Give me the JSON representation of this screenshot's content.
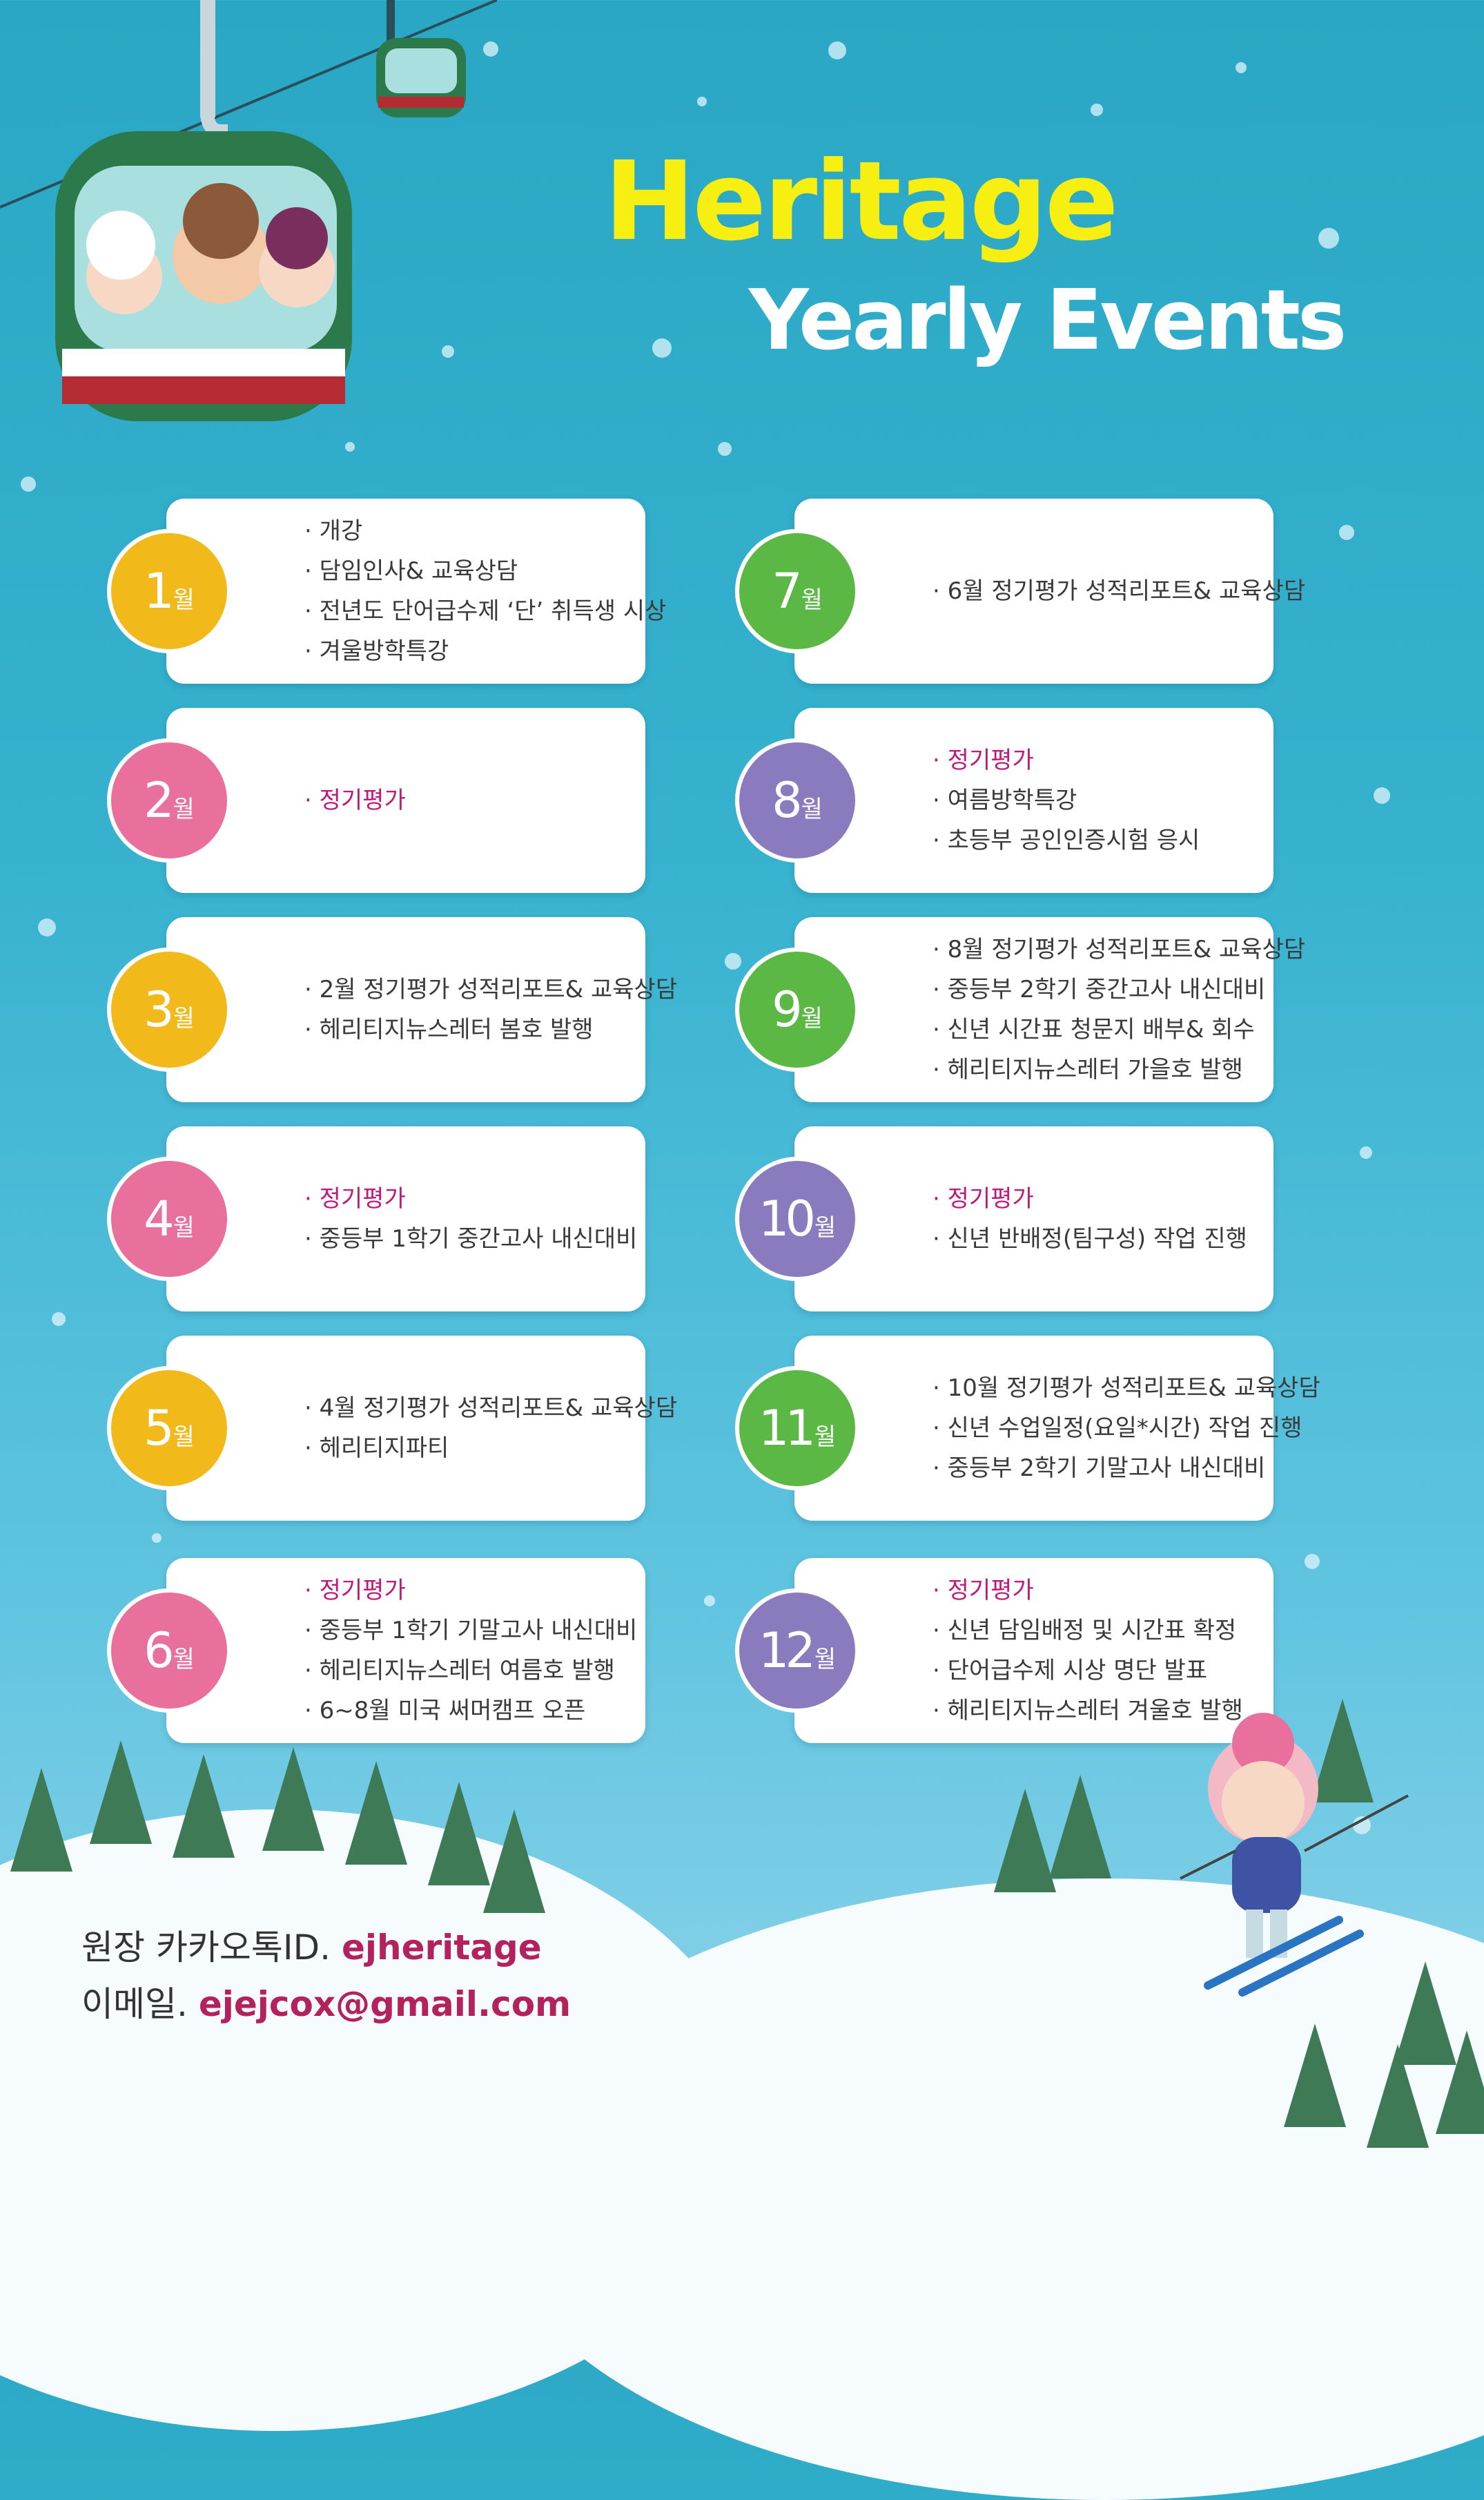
{
  "title": {
    "line1": "Heritage",
    "line2": "Yearly Events"
  },
  "unit": "월",
  "left_column": [
    {
      "month": "1",
      "color": "yellow",
      "items": [
        {
          "text": "· 개강",
          "pink": false
        },
        {
          "text": "· 담임인사& 교육상담",
          "pink": false
        },
        {
          "text": "· 전년도 단어급수제 ‘단’ 취득생 시상",
          "pink": false
        },
        {
          "text": "· 겨울방학특강",
          "pink": false
        }
      ]
    },
    {
      "month": "2",
      "color": "pink",
      "items": [
        {
          "text": "· 정기평가",
          "pink": true
        }
      ]
    },
    {
      "month": "3",
      "color": "yellow",
      "items": [
        {
          "text": "· 2월 정기평가 성적리포트& 교육상담",
          "pink": false
        },
        {
          "text": "· 헤리티지뉴스레터 봄호 발행",
          "pink": false
        }
      ]
    },
    {
      "month": "4",
      "color": "pink",
      "items": [
        {
          "text": "· 정기평가",
          "pink": true
        },
        {
          "text": "· 중등부 1학기 중간고사 내신대비",
          "pink": false
        }
      ]
    },
    {
      "month": "5",
      "color": "yellow",
      "items": [
        {
          "text": "· 4월 정기평가 성적리포트& 교육상담",
          "pink": false
        },
        {
          "text": "· 헤리티지파티",
          "pink": false
        }
      ]
    },
    {
      "month": "6",
      "color": "pink",
      "items": [
        {
          "text": "· 정기평가",
          "pink": true
        },
        {
          "text": "· 중등부 1학기 기말고사 내신대비",
          "pink": false
        },
        {
          "text": "· 헤리티지뉴스레터 여름호 발행",
          "pink": false
        },
        {
          "text": "· 6~8월 미국 써머캠프 오픈",
          "pink": false
        }
      ]
    }
  ],
  "right_column": [
    {
      "month": "7",
      "color": "green",
      "items": [
        {
          "text": "· 6월 정기평가 성적리포트& 교육상담",
          "pink": false
        }
      ]
    },
    {
      "month": "8",
      "color": "purple",
      "items": [
        {
          "text": "· 정기평가",
          "pink": true
        },
        {
          "text": "· 여름방학특강",
          "pink": false
        },
        {
          "text": "· 초등부 공인인증시험 응시",
          "pink": false
        }
      ]
    },
    {
      "month": "9",
      "color": "green",
      "items": [
        {
          "text": "· 8월 정기평가 성적리포트& 교육상담",
          "pink": false
        },
        {
          "text": "· 중등부 2학기 중간고사 내신대비",
          "pink": false
        },
        {
          "text": "· 신년 시간표 청문지 배부& 회수",
          "pink": false
        },
        {
          "text": "· 헤리티지뉴스레터 가을호 발행",
          "pink": false
        }
      ]
    },
    {
      "month": "10",
      "color": "purple",
      "items": [
        {
          "text": "· 정기평가",
          "pink": true
        },
        {
          "text": "· 신년 반배정(팀구성) 작업 진행",
          "pink": false
        }
      ]
    },
    {
      "month": "11",
      "color": "green",
      "items": [
        {
          "text": "· 10월 정기평가 성적리포트& 교육상담",
          "pink": false
        },
        {
          "text": "· 신년 수업일정(요일*시간) 작업 진행",
          "pink": false
        },
        {
          "text": "· 중등부 2학기 기말고사 내신대비",
          "pink": false
        }
      ]
    },
    {
      "month": "12",
      "color": "purple",
      "items": [
        {
          "text": "· 정기평가",
          "pink": true
        },
        {
          "text": "· 신년 담임배정 및 시간표 확정",
          "pink": false
        },
        {
          "text": "· 단어급수제 시상 명단 발표",
          "pink": false
        },
        {
          "text": "· 헤리티지뉴스레터 겨울호 발행",
          "pink": false
        }
      ]
    }
  ],
  "contact": {
    "kakao_label": "원장 카카오톡ID.",
    "kakao_id": "ejheritage",
    "email_label": "이메일.",
    "email": "ejejcox@gmail.com"
  },
  "colors": {
    "yellow": "#f2b91a",
    "pink": "#e9709c",
    "green": "#5bb844",
    "purple": "#8a7bbf",
    "title": "#f7ee12"
  }
}
